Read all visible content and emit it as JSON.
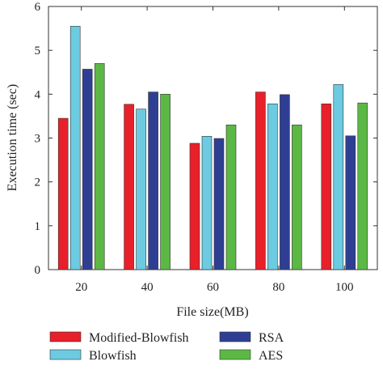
{
  "chart_data": {
    "type": "bar",
    "title": "",
    "xlabel": "File size(MB)",
    "ylabel": "Execution time (sec)",
    "categories": [
      "20",
      "40",
      "60",
      "80",
      "100"
    ],
    "ylim": [
      0,
      6
    ],
    "yticks": [
      "0",
      "1",
      "2",
      "3",
      "4",
      "5",
      "6"
    ],
    "grid": false,
    "legend_position": "bottom",
    "series": [
      {
        "name": "Modified-Blowfish",
        "color": "#e8202a",
        "values": [
          3.45,
          3.77,
          2.88,
          4.05,
          3.78
        ]
      },
      {
        "name": "Blowfish",
        "color": "#6ccbe0",
        "values": [
          5.55,
          3.66,
          3.04,
          3.78,
          4.22
        ]
      },
      {
        "name": "RSA",
        "color": "#2e3f93",
        "values": [
          4.57,
          4.05,
          2.99,
          3.99,
          3.05
        ]
      },
      {
        "name": "AES",
        "color": "#5cb845",
        "values": [
          4.7,
          4.0,
          3.3,
          3.3,
          3.8
        ]
      }
    ]
  }
}
